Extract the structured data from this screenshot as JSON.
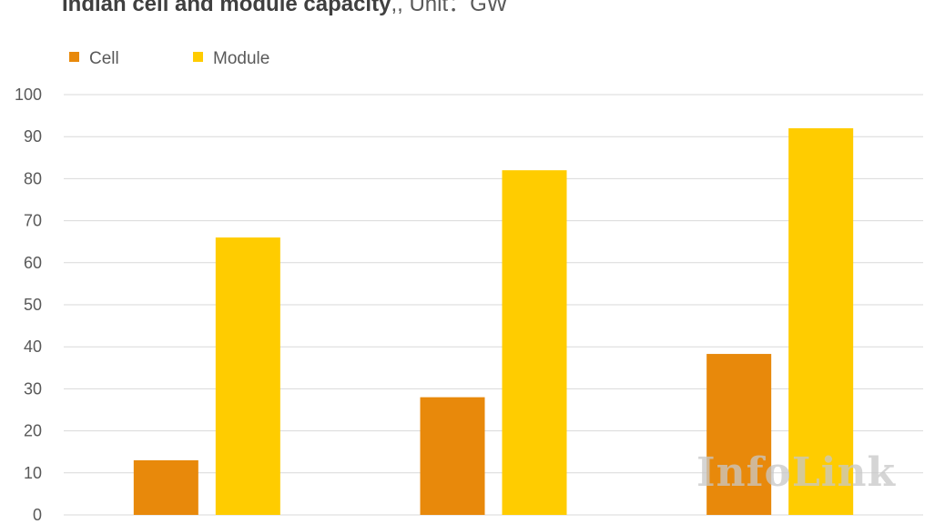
{
  "title": {
    "main": "Indian cell and module capacity",
    "unit": ",, Unit：GW"
  },
  "watermark": "InfoLink",
  "colors": {
    "cell": "#E8890B",
    "module": "#FFCC00",
    "grid": "#D9D9D9",
    "text": "#595959"
  },
  "chart_data": {
    "type": "bar",
    "categories": [
      "",
      "",
      ""
    ],
    "series": [
      {
        "name": "Cell",
        "values": [
          13,
          28,
          38.3
        ]
      },
      {
        "name": "Module",
        "values": [
          66,
          82,
          92
        ]
      }
    ],
    "ylim": [
      0,
      100
    ],
    "yticks": [
      0,
      10,
      20,
      30,
      40,
      50,
      60,
      70,
      80,
      90,
      100
    ],
    "legend": "top-left",
    "grid": true
  }
}
